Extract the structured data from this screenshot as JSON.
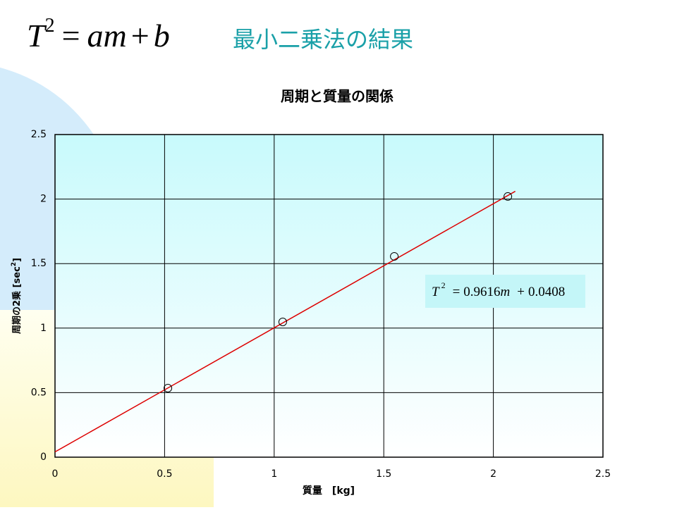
{
  "slide": {
    "formula": [
      "T",
      "2",
      "=",
      "am",
      "+",
      "b"
    ],
    "title": "最小二乗法の結果"
  },
  "chart_data": {
    "type": "scatter",
    "title": "周期と質量の関係",
    "x_label": "質量　[kg]",
    "y_label": [
      "周期の2乗 [sec",
      "2",
      "]"
    ],
    "x": [
      0.515,
      1.039,
      1.548,
      2.066
    ],
    "values": [
      0.535,
      1.048,
      1.556,
      2.02
    ],
    "marker_color": "#000000",
    "xlim": [
      0,
      2.5
    ],
    "ylim": [
      0,
      2.5
    ],
    "xticks": [
      0,
      0.5,
      1,
      1.5,
      2,
      2.5
    ],
    "yticks": [
      0,
      0.5,
      1,
      1.5,
      2,
      2.5
    ],
    "grid": true,
    "trendline": {
      "slope": 0.9616,
      "intercept": 0.0408,
      "x_end": 2.1,
      "color": "#dd0000"
    },
    "equation": {
      "lhs": "T",
      "exp": "2",
      "eq": "=",
      "slope_label": "0.9616",
      "var": "m",
      "plus": "+",
      "intercept_label": "0.0408"
    }
  }
}
